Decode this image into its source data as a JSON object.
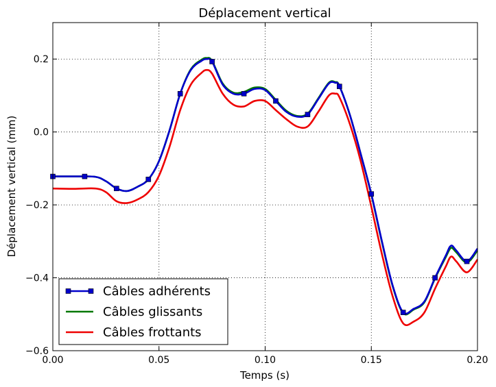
{
  "chart_data": {
    "type": "line",
    "title": "Déplacement vertical",
    "xlabel": "Temps (s)",
    "ylabel": "Déplacement vertical (mm)",
    "xlim": [
      0.0,
      0.2
    ],
    "ylim": [
      -0.6,
      0.3
    ],
    "x_ticks": [
      0.0,
      0.05,
      0.1,
      0.15,
      0.2
    ],
    "x_tick_labels": [
      "0.00",
      "0.05",
      "0.10",
      "0.15",
      "0.20"
    ],
    "y_ticks": [
      -0.6,
      -0.4,
      -0.2,
      0.0,
      0.2
    ],
    "y_tick_labels": [
      "−0.6",
      "−0.4",
      "−0.2",
      "0.0",
      "0.2"
    ],
    "grid": true,
    "legend_position": "bottom-left",
    "series": [
      {
        "name": "Câbles adhérents",
        "color": "#0000cc",
        "marker": "square",
        "x": [
          0.0,
          0.01,
          0.02,
          0.025,
          0.03,
          0.035,
          0.04,
          0.045,
          0.05,
          0.055,
          0.06,
          0.065,
          0.07,
          0.0725,
          0.075,
          0.08,
          0.085,
          0.09,
          0.095,
          0.1,
          0.105,
          0.11,
          0.115,
          0.12,
          0.125,
          0.13,
          0.133,
          0.135,
          0.14,
          0.145,
          0.15,
          0.155,
          0.16,
          0.165,
          0.17,
          0.175,
          0.18,
          0.185,
          0.1875,
          0.19,
          0.195,
          0.2
        ],
        "y": [
          -0.122,
          -0.122,
          -0.123,
          -0.135,
          -0.155,
          -0.162,
          -0.15,
          -0.13,
          -0.08,
          0.005,
          0.105,
          0.17,
          0.195,
          0.2,
          0.193,
          0.13,
          0.105,
          0.105,
          0.118,
          0.115,
          0.085,
          0.055,
          0.042,
          0.048,
          0.09,
          0.133,
          0.135,
          0.125,
          0.045,
          -0.06,
          -0.17,
          -0.3,
          -0.42,
          -0.495,
          -0.485,
          -0.465,
          -0.4,
          -0.34,
          -0.312,
          -0.325,
          -0.355,
          -0.32
        ],
        "markers_x": [
          0.0,
          0.015,
          0.03,
          0.045,
          0.06,
          0.075,
          0.09,
          0.105,
          0.12,
          0.135,
          0.15,
          0.165,
          0.18,
          0.195
        ],
        "markers_y": [
          -0.122,
          -0.122,
          -0.155,
          -0.13,
          0.105,
          0.193,
          0.105,
          0.085,
          0.048,
          0.125,
          -0.17,
          -0.495,
          -0.4,
          -0.355
        ]
      },
      {
        "name": "Câbles glissants",
        "color": "#007700",
        "marker": "none",
        "x": [
          0.0,
          0.01,
          0.02,
          0.025,
          0.03,
          0.035,
          0.04,
          0.045,
          0.05,
          0.055,
          0.06,
          0.065,
          0.07,
          0.0725,
          0.075,
          0.08,
          0.085,
          0.09,
          0.095,
          0.1,
          0.105,
          0.11,
          0.115,
          0.12,
          0.125,
          0.13,
          0.133,
          0.135,
          0.14,
          0.145,
          0.15,
          0.155,
          0.16,
          0.165,
          0.17,
          0.175,
          0.18,
          0.185,
          0.1875,
          0.19,
          0.195,
          0.2
        ],
        "y": [
          -0.122,
          -0.122,
          -0.123,
          -0.135,
          -0.155,
          -0.162,
          -0.15,
          -0.13,
          -0.08,
          0.005,
          0.105,
          0.172,
          0.198,
          0.203,
          0.195,
          0.133,
          0.108,
          0.11,
          0.122,
          0.118,
          0.088,
          0.058,
          0.044,
          0.05,
          0.092,
          0.135,
          0.137,
          0.126,
          0.045,
          -0.06,
          -0.172,
          -0.302,
          -0.422,
          -0.497,
          -0.487,
          -0.467,
          -0.402,
          -0.344,
          -0.318,
          -0.33,
          -0.358,
          -0.325
        ]
      },
      {
        "name": "Câbles frottants",
        "color": "#ee0000",
        "marker": "none",
        "x": [
          0.0,
          0.01,
          0.02,
          0.025,
          0.03,
          0.035,
          0.04,
          0.045,
          0.05,
          0.055,
          0.06,
          0.065,
          0.07,
          0.0725,
          0.075,
          0.08,
          0.085,
          0.09,
          0.095,
          0.1,
          0.105,
          0.11,
          0.115,
          0.12,
          0.125,
          0.13,
          0.133,
          0.135,
          0.14,
          0.145,
          0.15,
          0.155,
          0.16,
          0.165,
          0.17,
          0.175,
          0.18,
          0.185,
          0.1875,
          0.19,
          0.195,
          0.2
        ],
        "y": [
          -0.155,
          -0.156,
          -0.155,
          -0.165,
          -0.19,
          -0.195,
          -0.185,
          -0.165,
          -0.12,
          -0.04,
          0.06,
          0.13,
          0.162,
          0.17,
          0.16,
          0.105,
          0.075,
          0.07,
          0.085,
          0.085,
          0.06,
          0.035,
          0.015,
          0.015,
          0.055,
          0.1,
          0.105,
          0.095,
          0.02,
          -0.08,
          -0.205,
          -0.335,
          -0.45,
          -0.525,
          -0.52,
          -0.495,
          -0.43,
          -0.37,
          -0.342,
          -0.355,
          -0.385,
          -0.35
        ]
      }
    ]
  }
}
